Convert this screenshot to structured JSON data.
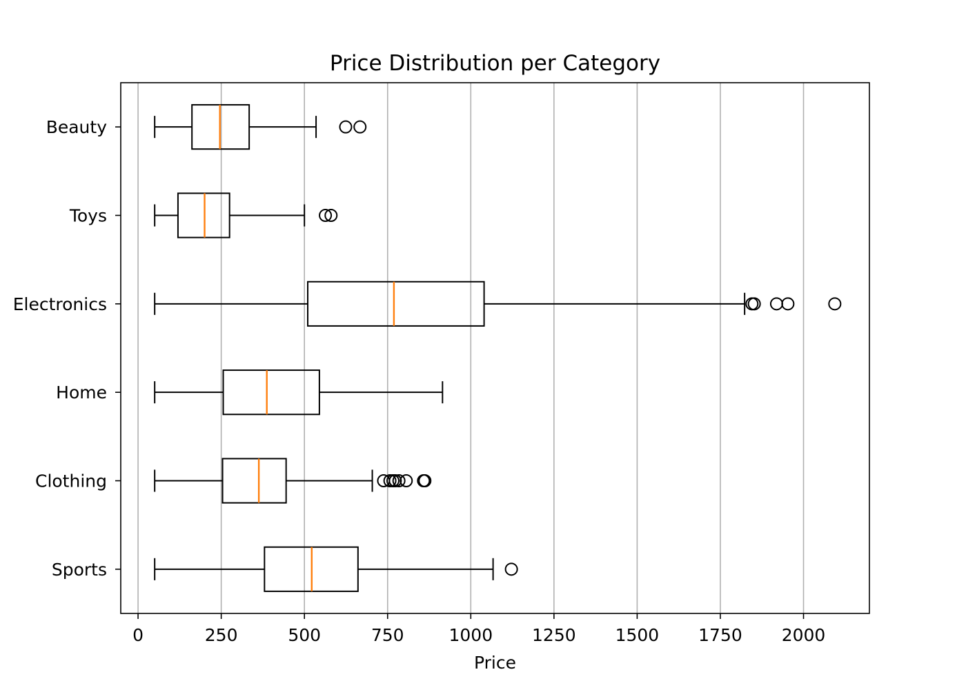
{
  "chart_data": {
    "type": "boxplot",
    "orientation": "horizontal",
    "title": "Price Distribution per Category",
    "xlabel": "Price",
    "ylabel": "",
    "xlim": [
      -52,
      2198
    ],
    "xticks": [
      0,
      250,
      500,
      750,
      1000,
      1250,
      1500,
      1750,
      2000
    ],
    "grid": "vertical",
    "legend": "none",
    "colors": {
      "box": "#000000",
      "median": "#ff7f0e",
      "grid": "#b0b0b0",
      "background": "#ffffff"
    },
    "categories": [
      "Sports",
      "Clothing",
      "Home",
      "Electronics",
      "Toys",
      "Beauty"
    ],
    "boxes": [
      {
        "category": "Sports",
        "whisker_low": 50,
        "q1": 380,
        "median": 522,
        "q3": 661,
        "whisker_high": 1067,
        "outliers": [
          1122
        ]
      },
      {
        "category": "Clothing",
        "whisker_low": 50,
        "q1": 254,
        "median": 363,
        "q3": 445,
        "whisker_high": 704,
        "outliers": [
          738,
          757,
          766,
          773,
          784,
          806,
          858,
          862
        ]
      },
      {
        "category": "Home",
        "whisker_low": 50,
        "q1": 256,
        "median": 387,
        "q3": 545,
        "whisker_high": 915,
        "outliers": []
      },
      {
        "category": "Electronics",
        "whisker_low": 50,
        "q1": 510,
        "median": 769,
        "q3": 1040,
        "whisker_high": 1823,
        "outliers": [
          1845,
          1852,
          1919,
          1953,
          2094
        ]
      },
      {
        "category": "Toys",
        "whisker_low": 50,
        "q1": 120,
        "median": 200,
        "q3": 275,
        "whisker_high": 500,
        "outliers": [
          563,
          580
        ]
      },
      {
        "category": "Beauty",
        "whisker_low": 50,
        "q1": 162,
        "median": 246,
        "q3": 334,
        "whisker_high": 535,
        "outliers": [
          624,
          667
        ]
      }
    ]
  }
}
